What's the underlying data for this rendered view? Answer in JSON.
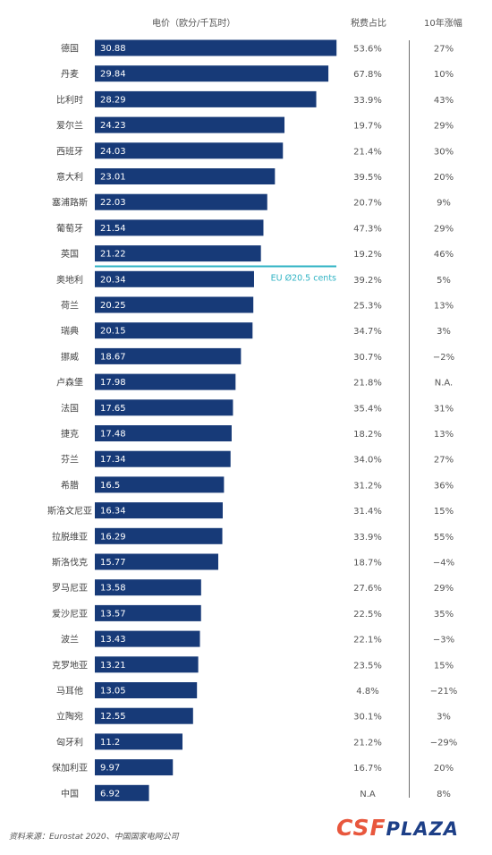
{
  "headers": {
    "price": "电价（欧分/千瓦时）",
    "tax": "税费占比",
    "growth": "10年涨幅"
  },
  "chart_data": {
    "type": "bar",
    "orientation": "horizontal",
    "categories": [
      "德国",
      "丹麦",
      "比利时",
      "爱尔兰",
      "西班牙",
      "意大利",
      "塞浦路斯",
      "葡萄牙",
      "英国",
      "奥地利",
      "荷兰",
      "瑞典",
      "挪威",
      "卢森堡",
      "法国",
      "捷克",
      "芬兰",
      "希腊",
      "斯洛文尼亚",
      "拉脱维亚",
      "斯洛伐克",
      "罗马尼亚",
      "爱沙尼亚",
      "波兰",
      "克罗地亚",
      "马耳他",
      "立陶宛",
      "匈牙利",
      "保加利亚",
      "中国"
    ],
    "values": [
      30.88,
      29.84,
      28.29,
      24.23,
      24.03,
      23.01,
      22.03,
      21.54,
      21.22,
      20.34,
      20.25,
      20.15,
      18.67,
      17.98,
      17.65,
      17.48,
      17.34,
      16.5,
      16.34,
      16.29,
      15.77,
      13.58,
      13.57,
      13.43,
      13.21,
      13.05,
      12.55,
      11.2,
      9.97,
      6.92
    ],
    "value_labels": [
      "30.88",
      "29.84",
      "28.29",
      "24.23",
      "24.03",
      "23.01",
      "22.03",
      "21.54",
      "21.22",
      "20.34",
      "20.25",
      "20.15",
      "18.67",
      "17.98",
      "17.65",
      "17.48",
      "17.34",
      "16.5",
      "16.34",
      "16.29",
      "15.77",
      "13.58",
      "13.57",
      "13.43",
      "13.21",
      "13.05",
      "12.55",
      "11.2",
      "9.97",
      "6.92"
    ],
    "tax_share": [
      "53.6%",
      "67.8%",
      "33.9%",
      "19.7%",
      "21.4%",
      "39.5%",
      "20.7%",
      "47.3%",
      "19.2%",
      "39.2%",
      "25.3%",
      "34.7%",
      "30.7%",
      "21.8%",
      "35.4%",
      "18.2%",
      "34.0%",
      "31.2%",
      "31.4%",
      "33.9%",
      "18.7%",
      "27.6%",
      "22.5%",
      "22.1%",
      "23.5%",
      "4.8%",
      "30.1%",
      "21.2%",
      "16.7%",
      "N.A"
    ],
    "growth_10y": [
      "27%",
      "10%",
      "43%",
      "29%",
      "30%",
      "20%",
      "9%",
      "29%",
      "46%",
      "5%",
      "13%",
      "3%",
      "−2%",
      "N.A.",
      "31%",
      "13%",
      "27%",
      "36%",
      "15%",
      "55%",
      "−4%",
      "29%",
      "35%",
      "−3%",
      "15%",
      "−21%",
      "3%",
      "−29%",
      "20%",
      "8%"
    ],
    "reference_line": {
      "label": "EU Ø20.5 cents",
      "value": 20.5
    },
    "bar_color": "#173a78",
    "reference_color": "#2fb3c4"
  },
  "footer": {
    "source": "资料来源：Eurostat 2020、中国国家电网公司"
  },
  "logo": {
    "part1": "CSF",
    "part2": "PLAZA"
  }
}
